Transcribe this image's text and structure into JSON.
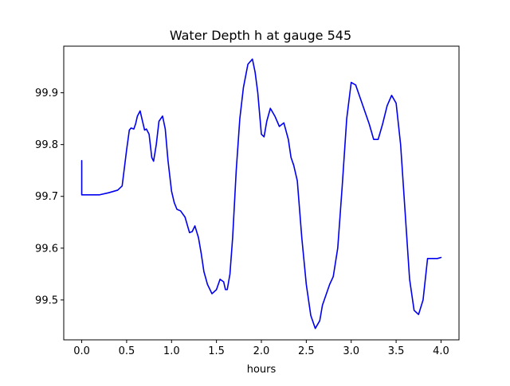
{
  "chart_data": {
    "type": "line",
    "title": "Water Depth h at gauge 545",
    "xlabel": "hours",
    "ylabel": "",
    "xlim": [
      -0.2,
      4.2
    ],
    "ylim": [
      99.423,
      99.99
    ],
    "grid": false,
    "x_ticks": [
      {
        "value": 0.0,
        "label": "0.0"
      },
      {
        "value": 0.5,
        "label": "0.5"
      },
      {
        "value": 1.0,
        "label": "1.0"
      },
      {
        "value": 1.5,
        "label": "1.5"
      },
      {
        "value": 2.0,
        "label": "2.0"
      },
      {
        "value": 2.5,
        "label": "2.5"
      },
      {
        "value": 3.0,
        "label": "3.0"
      },
      {
        "value": 3.5,
        "label": "3.5"
      },
      {
        "value": 4.0,
        "label": "4.0"
      }
    ],
    "y_ticks": [
      {
        "value": 99.5,
        "label": "99.5"
      },
      {
        "value": 99.6,
        "label": "99.6"
      },
      {
        "value": 99.7,
        "label": "99.7"
      },
      {
        "value": 99.8,
        "label": "99.8"
      },
      {
        "value": 99.9,
        "label": "99.9"
      }
    ],
    "series": [
      {
        "color": "#0000ee",
        "x": [
          0.0,
          0.0,
          0.05,
          0.2,
          0.3,
          0.4,
          0.45,
          0.5,
          0.53,
          0.55,
          0.58,
          0.6,
          0.62,
          0.65,
          0.67,
          0.7,
          0.72,
          0.75,
          0.78,
          0.8,
          0.83,
          0.86,
          0.9,
          0.93,
          0.96,
          1.0,
          1.03,
          1.06,
          1.1,
          1.15,
          1.2,
          1.23,
          1.26,
          1.3,
          1.33,
          1.36,
          1.4,
          1.45,
          1.5,
          1.54,
          1.58,
          1.6,
          1.62,
          1.65,
          1.68,
          1.72,
          1.76,
          1.8,
          1.85,
          1.9,
          1.93,
          1.96,
          2.0,
          2.03,
          2.06,
          2.1,
          2.15,
          2.2,
          2.25,
          2.3,
          2.33,
          2.36,
          2.4,
          2.45,
          2.5,
          2.55,
          2.6,
          2.65,
          2.68,
          2.72,
          2.76,
          2.8,
          2.85,
          2.9,
          2.95,
          3.0,
          3.05,
          3.1,
          3.15,
          3.2,
          3.25,
          3.3,
          3.35,
          3.4,
          3.45,
          3.5,
          3.55,
          3.6,
          3.65,
          3.7,
          3.75,
          3.8,
          3.85,
          3.88,
          3.92,
          3.96,
          4.0
        ],
        "y": [
          99.769,
          99.703,
          99.703,
          99.703,
          99.707,
          99.712,
          99.72,
          99.79,
          99.828,
          99.832,
          99.83,
          99.84,
          99.855,
          99.865,
          99.85,
          99.828,
          99.83,
          99.82,
          99.775,
          99.768,
          99.8,
          99.845,
          99.855,
          99.83,
          99.77,
          99.71,
          99.688,
          99.675,
          99.672,
          99.66,
          99.63,
          99.632,
          99.643,
          99.62,
          99.59,
          99.555,
          99.53,
          99.512,
          99.52,
          99.54,
          99.535,
          99.52,
          99.52,
          99.55,
          99.62,
          99.75,
          99.85,
          99.91,
          99.955,
          99.965,
          99.94,
          99.9,
          99.82,
          99.815,
          99.845,
          99.87,
          99.855,
          99.835,
          99.842,
          99.81,
          99.775,
          99.76,
          99.73,
          99.62,
          99.53,
          99.47,
          99.445,
          99.46,
          99.49,
          99.51,
          99.53,
          99.545,
          99.6,
          99.72,
          99.85,
          99.92,
          99.915,
          99.89,
          99.865,
          99.84,
          99.81,
          99.81,
          99.84,
          99.875,
          99.895,
          99.88,
          99.8,
          99.67,
          99.54,
          99.48,
          99.472,
          99.5,
          99.58,
          99.58,
          99.58,
          99.58,
          99.582
        ]
      }
    ]
  }
}
